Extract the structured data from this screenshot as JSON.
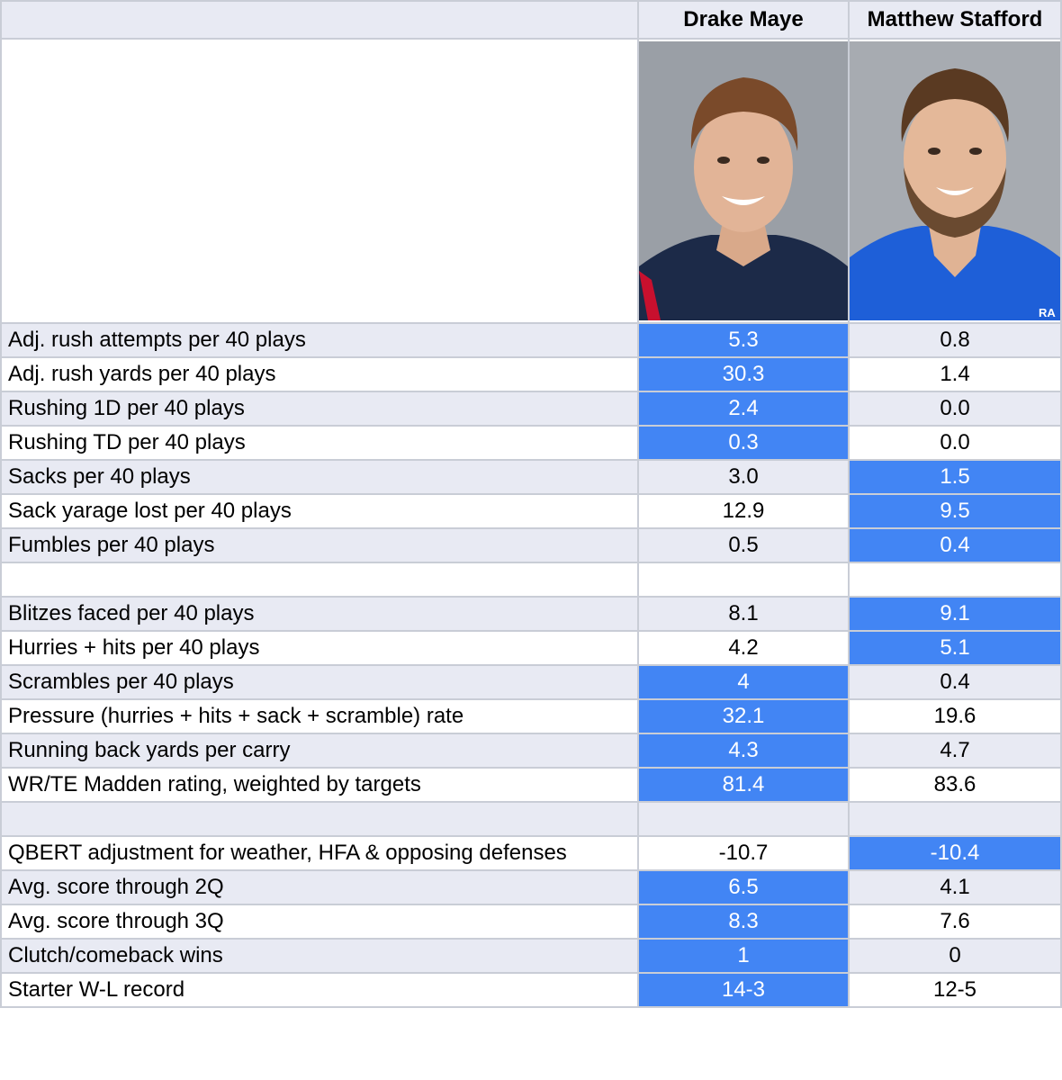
{
  "header": {
    "label_col": "",
    "player1": "Drake Maye",
    "player2": "Matthew Stafford"
  },
  "photos": {
    "player1": {
      "icon": "player-portrait-drake-maye",
      "jersey_color": "#1c2a48",
      "background": "#9a9fa6"
    },
    "player2": {
      "icon": "player-portrait-matthew-stafford",
      "jersey_color": "#1e5fd8",
      "background": "#a7abb1",
      "jersey_text": "RA"
    }
  },
  "colors": {
    "highlight": "#4285f4",
    "shade": "#e8eaf3",
    "grid": "#c9cdd6"
  },
  "rows": [
    {
      "label": "Adj. rush attempts per 40 plays",
      "v1": "5.3",
      "v2": "0.8",
      "hi": 1,
      "shade": true
    },
    {
      "label": "Adj. rush yards per 40 plays",
      "v1": "30.3",
      "v2": "1.4",
      "hi": 1,
      "shade": false
    },
    {
      "label": "Rushing 1D per 40 plays",
      "v1": "2.4",
      "v2": "0.0",
      "hi": 1,
      "shade": true
    },
    {
      "label": "Rushing TD per 40 plays",
      "v1": "0.3",
      "v2": "0.0",
      "hi": 1,
      "shade": false
    },
    {
      "label": "Sacks per 40 plays",
      "v1": "3.0",
      "v2": "1.5",
      "hi": 2,
      "shade": true
    },
    {
      "label": "Sack yarage lost per 40 plays",
      "v1": "12.9",
      "v2": "9.5",
      "hi": 2,
      "shade": false
    },
    {
      "label": "Fumbles per 40 plays",
      "v1": "0.5",
      "v2": "0.4",
      "hi": 2,
      "shade": true
    },
    {
      "label": "",
      "v1": "",
      "v2": "",
      "hi": 0,
      "shade": false
    },
    {
      "label": "Blitzes faced per 40 plays",
      "v1": "8.1",
      "v2": "9.1",
      "hi": 2,
      "shade": true
    },
    {
      "label": "Hurries + hits per 40 plays",
      "v1": "4.2",
      "v2": "5.1",
      "hi": 2,
      "shade": false
    },
    {
      "label": "Scrambles per 40 plays",
      "v1": "4",
      "v2": "0.4",
      "hi": 1,
      "shade": true
    },
    {
      "label": "Pressure (hurries + hits + sack + scramble) rate",
      "v1": "32.1",
      "v2": "19.6",
      "hi": 1,
      "shade": false
    },
    {
      "label": "Running back yards per carry",
      "v1": "4.3",
      "v2": "4.7",
      "hi": 1,
      "shade": true
    },
    {
      "label": "WR/TE Madden rating, weighted by targets",
      "v1": "81.4",
      "v2": "83.6",
      "hi": 1,
      "shade": false
    },
    {
      "label": "",
      "v1": "",
      "v2": "",
      "hi": 0,
      "shade": true
    },
    {
      "label": "QBERT adjustment for weather, HFA & opposing defenses",
      "v1": "-10.7",
      "v2": "-10.4",
      "hi": 2,
      "shade": false
    },
    {
      "label": "Avg. score through 2Q",
      "v1": "6.5",
      "v2": "4.1",
      "hi": 1,
      "shade": true
    },
    {
      "label": "Avg. score through 3Q",
      "v1": "8.3",
      "v2": "7.6",
      "hi": 1,
      "shade": false
    },
    {
      "label": "Clutch/comeback wins",
      "v1": "1",
      "v2": "0",
      "hi": 1,
      "shade": true
    },
    {
      "label": "Starter W-L record",
      "v1": "14-3",
      "v2": "12-5",
      "hi": 1,
      "shade": false
    }
  ]
}
